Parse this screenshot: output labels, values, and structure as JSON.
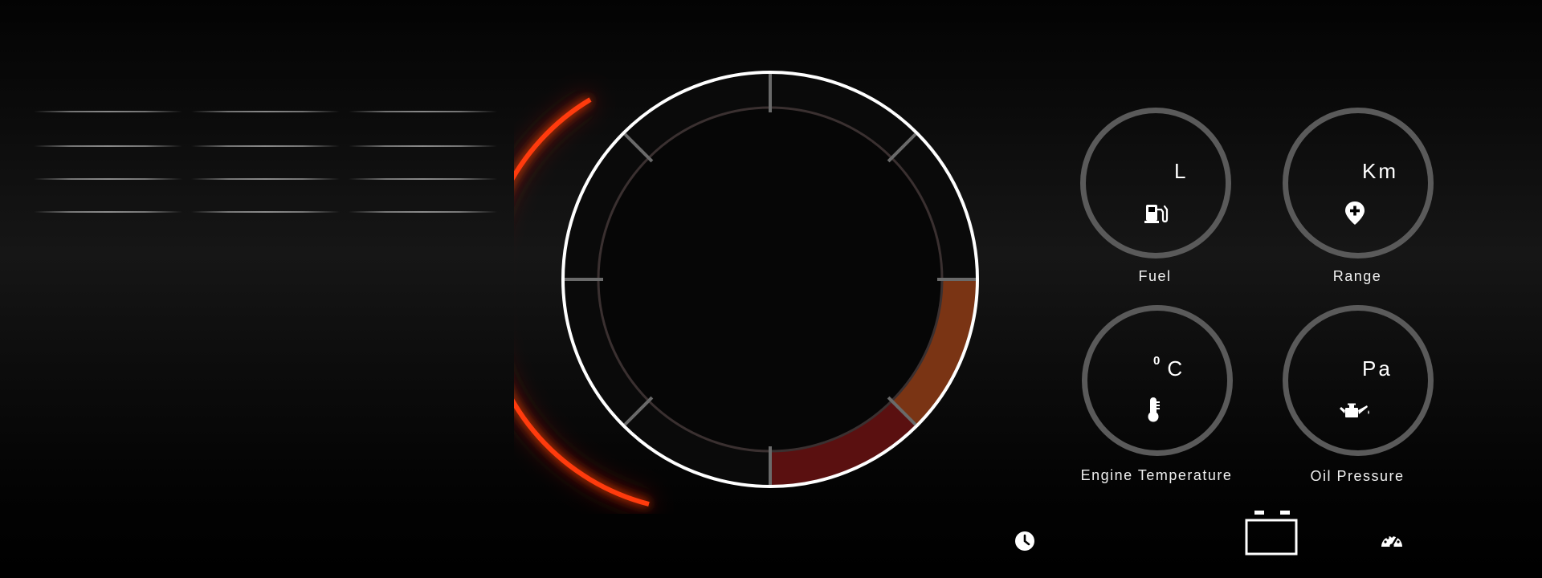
{
  "dashboard": {
    "gauges": [
      {
        "id": "fuel",
        "label": "Fuel",
        "unit": "L",
        "icon": "fuel-pump-icon"
      },
      {
        "id": "range",
        "label": "Range",
        "unit": "Km",
        "icon": "location-pin-icon"
      },
      {
        "id": "engine-temperature",
        "label": "Engine Temperature",
        "unit_superscript": "0",
        "unit": "C",
        "icon": "thermometer-icon"
      },
      {
        "id": "oil-pressure",
        "label": "Oil Pressure",
        "unit": "Pa",
        "icon": "oil-can-icon"
      }
    ],
    "bottom_icons": [
      "clock-icon",
      "battery-icon",
      "speedometer-icon"
    ]
  },
  "colors": {
    "accent_glow": "#ff3a10",
    "zone_orange": "#7a3414",
    "zone_red": "#5a1010",
    "gauge_ring": "#5a5a5a",
    "dial_outline": "#ffffff"
  }
}
